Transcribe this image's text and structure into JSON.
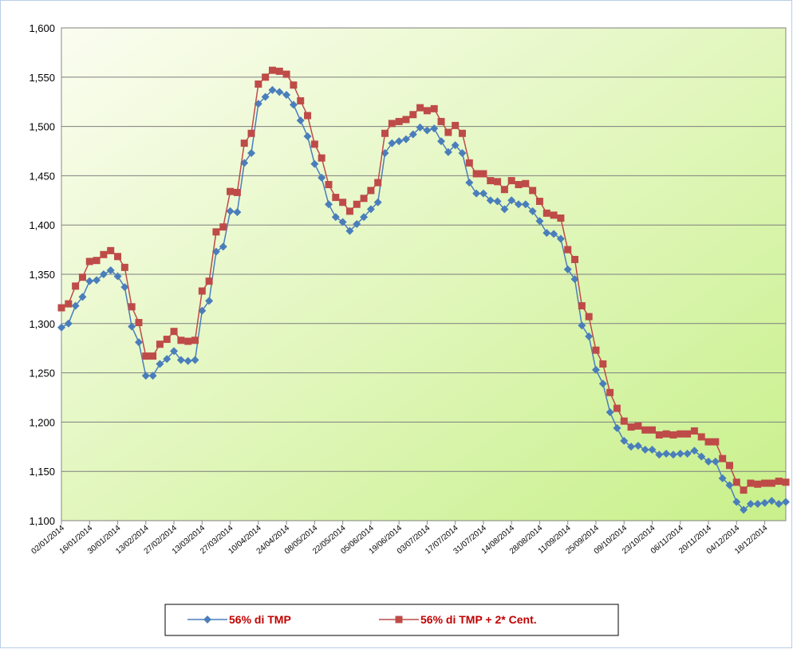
{
  "chart_data": {
    "type": "line",
    "categories": [
      "02/01/2014",
      null,
      null,
      null,
      "16/01/2014",
      null,
      null,
      null,
      "30/01/2014",
      null,
      null,
      null,
      "13/02/2014",
      null,
      null,
      null,
      "27/02/2014",
      null,
      null,
      null,
      "13/03/2014",
      null,
      null,
      null,
      "27/03/2014",
      null,
      null,
      null,
      "10/04/2014",
      null,
      null,
      null,
      "24/04/2014",
      null,
      null,
      null,
      "08/05/2014",
      null,
      null,
      null,
      "22/05/2014",
      null,
      null,
      null,
      "05/06/2014",
      null,
      null,
      null,
      "19/06/2014",
      null,
      null,
      null,
      "03/07/2014",
      null,
      null,
      null,
      "17/07/2014",
      null,
      null,
      null,
      "31/07/2014",
      null,
      null,
      null,
      "14/08/2014",
      null,
      null,
      null,
      "28/08/2014",
      null,
      null,
      null,
      "11/09/2014",
      null,
      null,
      null,
      "25/09/2014",
      null,
      null,
      null,
      "09/10/2014",
      null,
      null,
      null,
      "23/10/2014",
      null,
      null,
      null,
      "06/11/2014",
      null,
      null,
      null,
      "20/11/2014",
      null,
      null,
      null,
      "04/12/2014",
      null,
      null,
      null,
      "18/12/2014",
      null,
      null,
      null
    ],
    "series": [
      {
        "name": "56% di TMP",
        "color": "#4a7ebb",
        "marker": "diamond",
        "values": [
          1296,
          1300,
          1318,
          1327,
          1343,
          1344,
          1350,
          1354,
          1348,
          1337,
          1297,
          1281,
          1247,
          1247,
          1259,
          1264,
          1272,
          1263,
          1262,
          1263,
          1313,
          1323,
          1373,
          1378,
          1414,
          1413,
          1463,
          1473,
          1523,
          1530,
          1537,
          1535,
          1532,
          1522,
          1506,
          1490,
          1462,
          1448,
          1421,
          1408,
          1403,
          1394,
          1401,
          1408,
          1416,
          1423,
          1473,
          1483,
          1485,
          1487,
          1492,
          1499,
          1496,
          1498,
          1485,
          1474,
          1481,
          1473,
          1443,
          1432,
          1432,
          1425,
          1424,
          1416,
          1425,
          1421,
          1421,
          1414,
          1404,
          1392,
          1391,
          1386,
          1355,
          1345,
          1298,
          1287,
          1253,
          1239,
          1210,
          1194,
          1181,
          1175,
          1176,
          1172,
          1172,
          1167,
          1168,
          1167,
          1168,
          1168,
          1171,
          1165,
          1160,
          1160,
          1143,
          1136,
          1119,
          1111,
          1117,
          1117,
          1118,
          1120,
          1117,
          1119
        ]
      },
      {
        "name": "56% di TMP + 2* Cent.",
        "color": "#be4b48",
        "marker": "square",
        "values": [
          1316,
          1320,
          1338,
          1347,
          1363,
          1364,
          1370,
          1374,
          1368,
          1357,
          1317,
          1301,
          1267,
          1267,
          1279,
          1284,
          1292,
          1283,
          1282,
          1283,
          1333,
          1343,
          1393,
          1398,
          1434,
          1433,
          1483,
          1493,
          1543,
          1550,
          1557,
          1556,
          1553,
          1542,
          1526,
          1511,
          1482,
          1468,
          1441,
          1428,
          1423,
          1414,
          1421,
          1427,
          1435,
          1443,
          1493,
          1503,
          1505,
          1507,
          1512,
          1519,
          1516,
          1518,
          1505,
          1494,
          1501,
          1493,
          1463,
          1452,
          1452,
          1445,
          1444,
          1436,
          1445,
          1441,
          1442,
          1435,
          1424,
          1412,
          1410,
          1407,
          1375,
          1365,
          1318,
          1307,
          1273,
          1259,
          1230,
          1214,
          1201,
          1195,
          1196,
          1192,
          1192,
          1187,
          1188,
          1187,
          1188,
          1188,
          1191,
          1185,
          1180,
          1180,
          1163,
          1156,
          1139,
          1131,
          1138,
          1137,
          1138,
          1138,
          1140,
          1139
        ]
      }
    ],
    "ylim": [
      1100,
      1600
    ],
    "yticks": [
      {
        "value": 1100,
        "label": "1,100"
      },
      {
        "value": 1150,
        "label": "1,150"
      },
      {
        "value": 1200,
        "label": "1,200"
      },
      {
        "value": 1250,
        "label": "1,250"
      },
      {
        "value": 1300,
        "label": "1,300"
      },
      {
        "value": 1350,
        "label": "1,350"
      },
      {
        "value": 1400,
        "label": "1,400"
      },
      {
        "value": 1450,
        "label": "1,450"
      },
      {
        "value": 1500,
        "label": "1,500"
      },
      {
        "value": 1550,
        "label": "1,550"
      },
      {
        "value": 1600,
        "label": "1,600"
      }
    ],
    "grid": true,
    "legend": "bottom"
  }
}
